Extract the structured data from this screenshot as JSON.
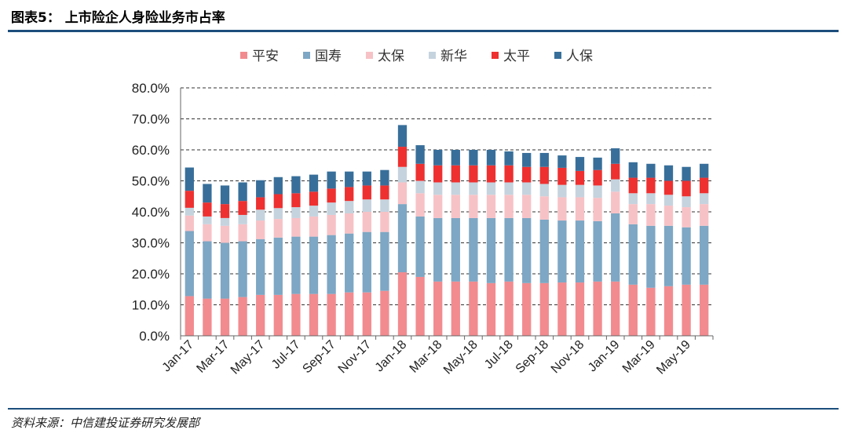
{
  "header": {
    "title": "图表5：  上市险企人身险业务市占率"
  },
  "footer": {
    "source": "资料来源：中信建投证券研究发展部"
  },
  "chart_data": {
    "type": "bar",
    "stacked": true,
    "title": "图表5：  上市险企人身险业务市占率",
    "xlabel": "",
    "ylabel": "",
    "ylim": [
      0,
      80
    ],
    "yticks": [
      "0.0%",
      "10.0%",
      "20.0%",
      "30.0%",
      "40.0%",
      "50.0%",
      "60.0%",
      "70.0%",
      "80.0%"
    ],
    "grid": true,
    "legend_position": "top-center",
    "categories": [
      "Jan-17",
      "Feb-17",
      "Mar-17",
      "Apr-17",
      "May-17",
      "Jun-17",
      "Jul-17",
      "Aug-17",
      "Sep-17",
      "Oct-17",
      "Nov-17",
      "Dec-17",
      "Jan-18",
      "Feb-18",
      "Mar-18",
      "Apr-18",
      "May-18",
      "Jun-18",
      "Jul-18",
      "Aug-18",
      "Sep-18",
      "Oct-18",
      "Nov-18",
      "Dec-18",
      "Jan-19",
      "Feb-19",
      "Mar-19",
      "Apr-19",
      "May-19",
      "Jun-19"
    ],
    "x_tick_labels": [
      "Jan-17",
      "",
      "Mar-17",
      "",
      "May-17",
      "",
      "Jul-17",
      "",
      "Sep-17",
      "",
      "Nov-17",
      "",
      "Jan-18",
      "",
      "Mar-18",
      "",
      "May-18",
      "",
      "Jul-18",
      "",
      "Sep-18",
      "",
      "Nov-18",
      "",
      "Jan-19",
      "",
      "Mar-19",
      "",
      "May-19",
      ""
    ],
    "series": [
      {
        "name": "平安",
        "color": "#f28b8f",
        "values": [
          12.8,
          12.0,
          12.0,
          12.5,
          13.2,
          13.2,
          13.5,
          13.5,
          13.5,
          14.0,
          14.0,
          14.5,
          20.5,
          19.0,
          17.5,
          17.5,
          17.5,
          17.0,
          17.5,
          17.0,
          17.0,
          17.2,
          17.2,
          17.5,
          17.5,
          16.5,
          15.5,
          16.0,
          16.5,
          16.5
        ]
      },
      {
        "name": "国寿",
        "color": "#7da7c4",
        "values": [
          21.0,
          18.5,
          18.0,
          18.0,
          18.0,
          18.5,
          18.5,
          18.5,
          19.0,
          19.0,
          19.5,
          19.0,
          22.0,
          19.5,
          20.5,
          20.5,
          20.5,
          21.0,
          20.5,
          21.0,
          20.5,
          20.0,
          20.0,
          19.5,
          22.0,
          19.5,
          20.0,
          19.5,
          18.5,
          19.0
        ]
      },
      {
        "name": "太保",
        "color": "#f7c2c6",
        "values": [
          5.0,
          5.5,
          5.5,
          5.5,
          6.0,
          6.0,
          6.0,
          6.5,
          6.5,
          6.5,
          6.5,
          6.5,
          7.0,
          7.5,
          7.5,
          7.5,
          7.5,
          7.5,
          7.5,
          7.5,
          7.5,
          7.5,
          7.5,
          7.5,
          7.0,
          6.5,
          7.0,
          6.5,
          6.5,
          7.0
        ]
      },
      {
        "name": "新华",
        "color": "#c5d3de",
        "values": [
          2.5,
          2.5,
          2.5,
          3.0,
          3.5,
          3.5,
          3.5,
          3.5,
          4.0,
          4.0,
          4.0,
          4.0,
          5.0,
          4.0,
          4.0,
          4.0,
          4.0,
          4.0,
          4.0,
          4.0,
          4.0,
          4.0,
          4.0,
          4.0,
          4.0,
          3.5,
          3.5,
          3.5,
          3.5,
          3.5
        ]
      },
      {
        "name": "太平",
        "color": "#ee3030",
        "values": [
          5.5,
          4.5,
          4.5,
          4.5,
          4.0,
          4.5,
          4.5,
          4.5,
          4.5,
          4.5,
          4.5,
          4.5,
          6.5,
          5.5,
          5.5,
          5.5,
          5.5,
          5.5,
          5.5,
          5.0,
          5.5,
          5.5,
          4.5,
          5.0,
          5.0,
          5.0,
          5.0,
          4.5,
          5.0,
          5.0
        ]
      },
      {
        "name": "人保",
        "color": "#386f9a",
        "values": [
          7.5,
          6.0,
          6.0,
          6.0,
          5.5,
          5.5,
          5.5,
          5.5,
          5.5,
          5.0,
          4.5,
          5.0,
          7.0,
          6.0,
          5.0,
          5.0,
          5.0,
          5.0,
          4.5,
          4.5,
          4.5,
          4.0,
          4.5,
          4.0,
          5.0,
          5.0,
          4.5,
          5.0,
          4.5,
          4.5
        ]
      }
    ]
  }
}
